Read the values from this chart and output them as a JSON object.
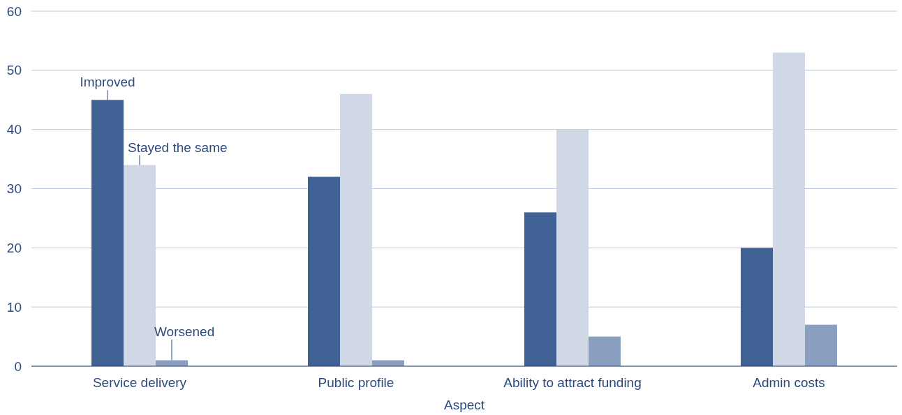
{
  "chart_data": {
    "type": "bar",
    "xlabel": "Aspect",
    "categories": [
      "Service delivery",
      "Public profile",
      "Ability to attract funding",
      "Admin costs"
    ],
    "series": [
      {
        "name": "Improved",
        "color": "#3f6193",
        "values": [
          45,
          32,
          26,
          20
        ]
      },
      {
        "name": "Stayed the same",
        "color": "#cfd8e4",
        "values": [
          34,
          46,
          40,
          53
        ]
      },
      {
        "name": "Worsened",
        "color": "#8a9fc0",
        "values": [
          1,
          1,
          5,
          7
        ]
      }
    ],
    "ylim": [
      0,
      60
    ],
    "yticks": [
      0,
      10,
      20,
      30,
      40,
      50,
      60
    ],
    "grid": "y"
  }
}
